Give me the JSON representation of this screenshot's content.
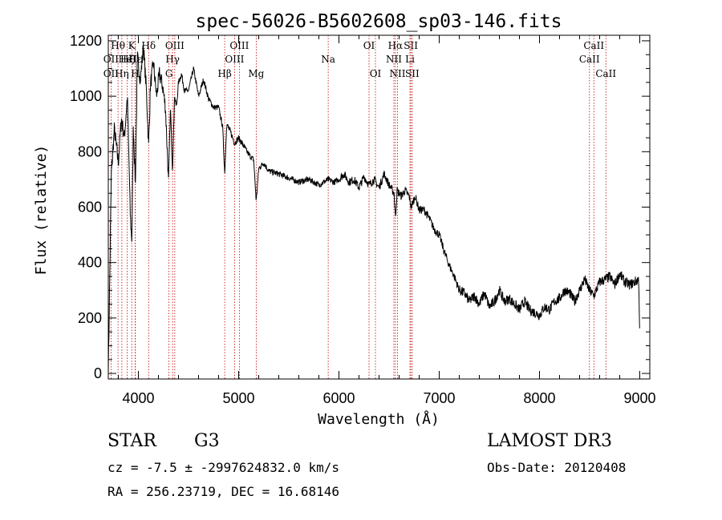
{
  "chart_data": {
    "type": "line",
    "title": "spec-56026-B5602608_sp03-146.fits",
    "xlabel": "Wavelength (Å)",
    "ylabel": "Flux (relative)",
    "xlim": [
      3700,
      9100
    ],
    "ylim": [
      -20,
      1220
    ],
    "xticks": [
      4000,
      5000,
      6000,
      7000,
      8000,
      9000
    ],
    "yticks": [
      0,
      200,
      400,
      600,
      800,
      1000,
      1200
    ],
    "line_color": "#000000",
    "marker_color": "#c00000",
    "series": [
      {
        "name": "flux",
        "x": [
          3700,
          3730,
          3760,
          3800,
          3830,
          3860,
          3890,
          3920,
          3935,
          3950,
          3970,
          3990,
          4020,
          4050,
          4080,
          4102,
          4120,
          4150,
          4180,
          4210,
          4240,
          4270,
          4300,
          4320,
          4340,
          4360,
          4380,
          4400,
          4430,
          4460,
          4500,
          4550,
          4600,
          4650,
          4700,
          4750,
          4800,
          4840,
          4861,
          4880,
          4920,
          4960,
          5000,
          5050,
          5100,
          5150,
          5175,
          5200,
          5250,
          5300,
          5400,
          5500,
          5600,
          5700,
          5800,
          5893,
          5950,
          6000,
          6050,
          6100,
          6150,
          6200,
          6250,
          6300,
          6350,
          6400,
          6450,
          6500,
          6550,
          6563,
          6580,
          6620,
          6660,
          6700,
          6720,
          6760,
          6800,
          6850,
          6900,
          6950,
          7000,
          7050,
          7100,
          7150,
          7200,
          7250,
          7300,
          7350,
          7400,
          7450,
          7500,
          7550,
          7600,
          7650,
          7700,
          7750,
          7800,
          7850,
          7900,
          7950,
          8000,
          8050,
          8100,
          8150,
          8200,
          8250,
          8300,
          8350,
          8400,
          8450,
          8498,
          8542,
          8600,
          8662,
          8700,
          8750,
          8800,
          8850,
          8900,
          8950,
          8990,
          9000
        ],
        "y": [
          0,
          720,
          880,
          760,
          920,
          850,
          1000,
          560,
          480,
          900,
          680,
          1140,
          1060,
          1180,
          1020,
          820,
          1040,
          1120,
          1000,
          1080,
          1040,
          960,
          700,
          960,
          730,
          1000,
          960,
          1050,
          1080,
          1020,
          1020,
          1100,
          1000,
          1060,
          990,
          960,
          960,
          890,
          720,
          900,
          870,
          830,
          850,
          820,
          790,
          770,
          620,
          740,
          760,
          730,
          720,
          705,
          690,
          700,
          680,
          700,
          690,
          700,
          720,
          690,
          700,
          670,
          710,
          680,
          700,
          670,
          720,
          680,
          650,
          560,
          660,
          640,
          660,
          640,
          600,
          640,
          590,
          590,
          560,
          520,
          500,
          440,
          390,
          350,
          300,
          290,
          260,
          280,
          250,
          290,
          240,
          260,
          300,
          260,
          270,
          250,
          230,
          260,
          230,
          220,
          210,
          240,
          230,
          260,
          270,
          300,
          290,
          260,
          300,
          340,
          300,
          280,
          330,
          340,
          350,
          320,
          360,
          330,
          320,
          330,
          340,
          120
        ]
      }
    ],
    "line_markers": [
      {
        "label": "Hθ",
        "wave": 3797,
        "row": 0
      },
      {
        "label": "OII",
        "wave": 3727,
        "row": 1
      },
      {
        "label": "OII",
        "wave": 3727,
        "row": 2
      },
      {
        "label": "K",
        "wave": 3934,
        "row": 0
      },
      {
        "label": "HeI",
        "wave": 3889,
        "row": 1
      },
      {
        "label": "Hη",
        "wave": 3835,
        "row": 2
      },
      {
        "label": "Hζ",
        "wave": 3889,
        "row": 1
      },
      {
        "label": "H",
        "wave": 3968,
        "row": 2
      },
      {
        "label": "Hδ",
        "wave": 4102,
        "row": 0
      },
      {
        "label": "Hε",
        "wave": 3970,
        "row": 1
      },
      {
        "label": "OIII",
        "wave": 4363,
        "row": 0
      },
      {
        "label": "Hγ",
        "wave": 4341,
        "row": 1
      },
      {
        "label": "G",
        "wave": 4305,
        "row": 2
      },
      {
        "label": "OIII",
        "wave": 5007,
        "row": 0
      },
      {
        "label": "OIII",
        "wave": 4959,
        "row": 1
      },
      {
        "label": "Hβ",
        "wave": 4861,
        "row": 2
      },
      {
        "label": "Mg",
        "wave": 5175,
        "row": 2
      },
      {
        "label": "Na",
        "wave": 5893,
        "row": 1
      },
      {
        "label": "OI",
        "wave": 6300,
        "row": 0
      },
      {
        "label": "OI",
        "wave": 6364,
        "row": 2
      },
      {
        "label": "Hα",
        "wave": 6563,
        "row": 0
      },
      {
        "label": "NII",
        "wave": 6548,
        "row": 1
      },
      {
        "label": "NII",
        "wave": 6584,
        "row": 2
      },
      {
        "label": "SII",
        "wave": 6717,
        "row": 0
      },
      {
        "label": "Li",
        "wave": 6708,
        "row": 1
      },
      {
        "label": "SII",
        "wave": 6731,
        "row": 2
      },
      {
        "label": "CaII",
        "wave": 8542,
        "row": 0
      },
      {
        "label": "CaII",
        "wave": 8498,
        "row": 1
      },
      {
        "label": "CaII",
        "wave": 8662,
        "row": 2
      }
    ]
  },
  "info": {
    "object_class": "STAR",
    "subclass": "G3",
    "survey": "LAMOST DR3",
    "cz_line": "cz = -7.5 ± -2997624832.0 km/s",
    "obs_date_line": "Obs-Date: 20120408",
    "radec_line": "RA = 256.23719, DEC =  16.68146"
  }
}
